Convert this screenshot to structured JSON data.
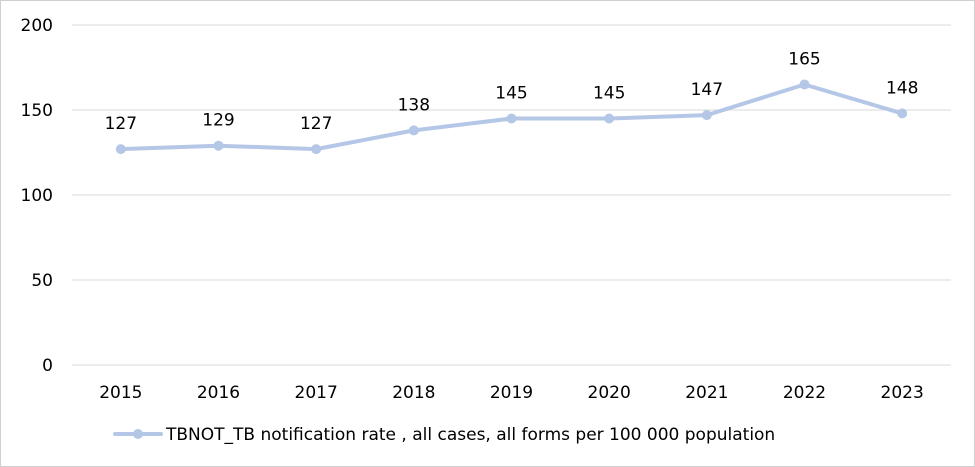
{
  "chart_data": {
    "type": "line",
    "categories": [
      "2015",
      "2016",
      "2017",
      "2018",
      "2019",
      "2020",
      "2021",
      "2022",
      "2023"
    ],
    "series": [
      {
        "name": "TBNOT_TB notification rate , all cases, all forms per 100 000 population",
        "values": [
          127,
          129,
          127,
          138,
          145,
          145,
          147,
          165,
          148
        ],
        "color": "#b4c7e7"
      }
    ],
    "y_ticks": [
      0,
      50,
      100,
      150,
      200
    ],
    "ylim": [
      0,
      200
    ],
    "grid": true,
    "legend_position": "bottom",
    "gridline_color": "#d9d9d9"
  }
}
